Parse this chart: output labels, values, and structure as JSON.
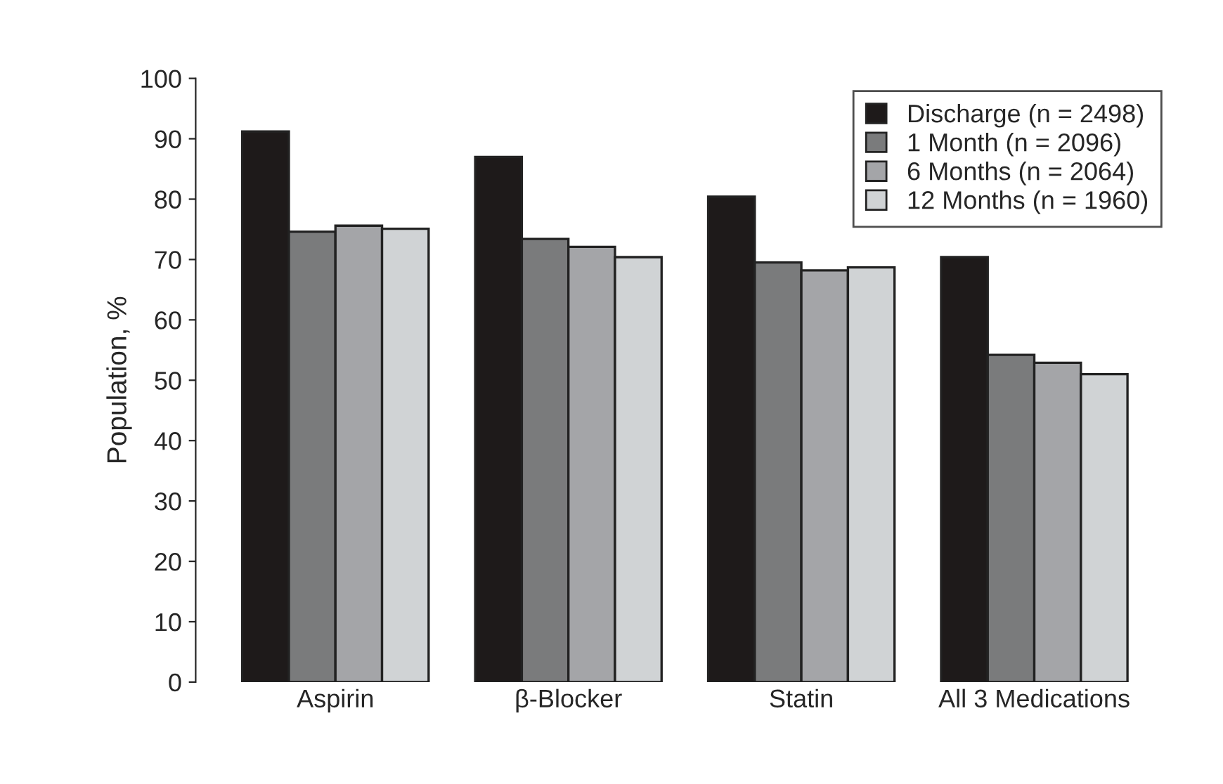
{
  "chart_data": {
    "type": "bar",
    "ylabel": "Population, %",
    "categories": [
      "Aspirin",
      "β-Blocker",
      "Statin",
      "All 3 Medications"
    ],
    "series": [
      {
        "name": "Discharge (n = 2498)",
        "color": "#1e1a1a",
        "values": [
          91.2,
          87,
          80.4,
          70.4
        ]
      },
      {
        "name": "1 Month (n = 2096)",
        "color": "#7a7b7c",
        "values": [
          74.6,
          73.4,
          69.5,
          54.2
        ]
      },
      {
        "name": "6 Months (n = 2064)",
        "color": "#a4a5a8",
        "values": [
          75.6,
          72.1,
          68.2,
          52.9
        ]
      },
      {
        "name": "12 Months (n = 1960)",
        "color": "#d0d3d5",
        "values": [
          75.1,
          70.4,
          68.7,
          51
        ]
      }
    ],
    "ylim": [
      0,
      100
    ],
    "yticks": [
      0,
      10,
      20,
      30,
      40,
      50,
      60,
      70,
      80,
      90,
      100
    ],
    "grid": false,
    "legend": "top right"
  }
}
